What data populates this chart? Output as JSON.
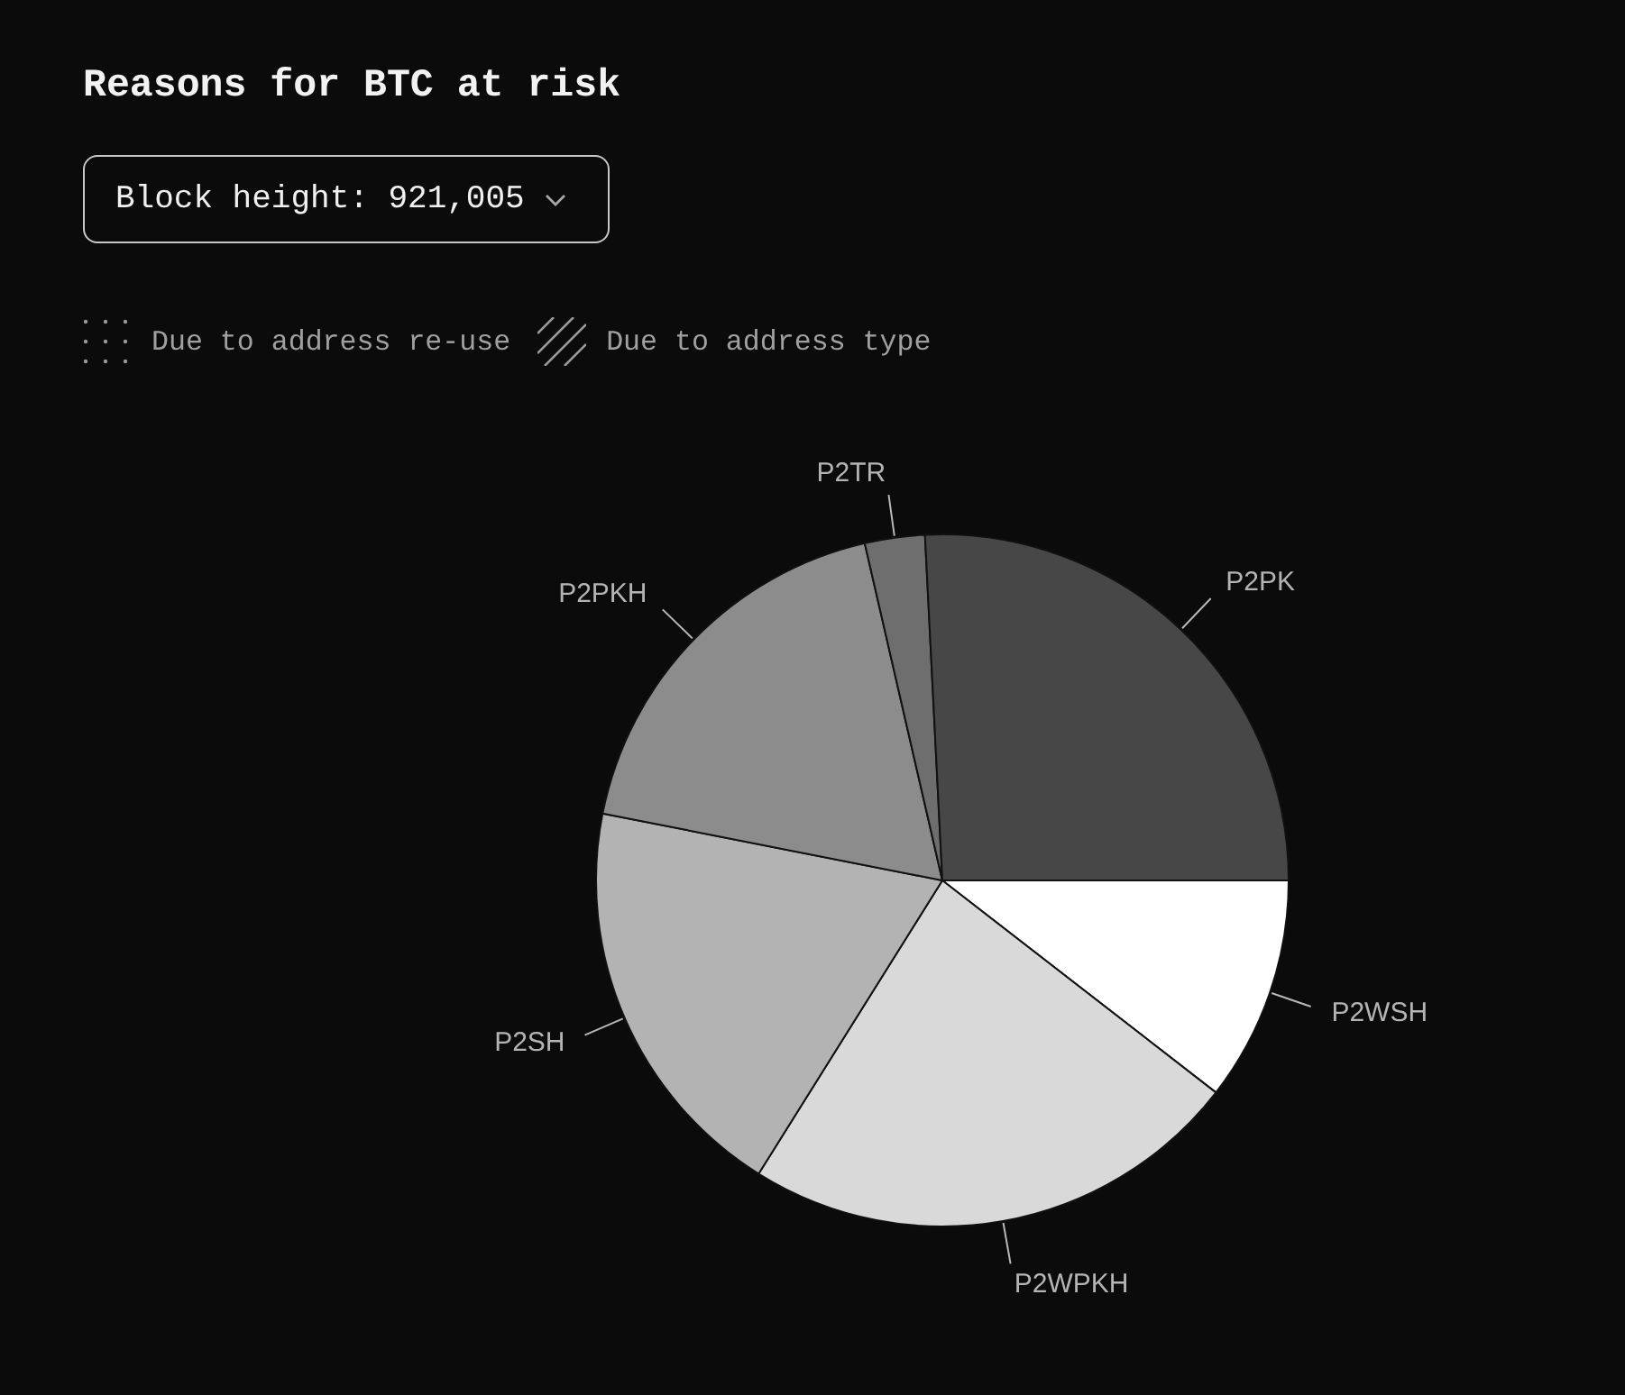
{
  "chart_data": {
    "type": "pie",
    "title": "Reasons for BTC at risk",
    "subtitle": "Block height: 921,005",
    "categories": [
      "P2WSH",
      "P2WPKH",
      "P2SH",
      "P2PKH",
      "P2TR",
      "P2PK"
    ],
    "values": [
      10.5,
      23.4,
      19.2,
      18.3,
      2.8,
      25.8
    ],
    "colors": [
      "#ffffff",
      "#d9d9d9",
      "#b3b3b3",
      "#8c8c8c",
      "#6e6e6e",
      "#474747"
    ],
    "annotations": [
      "Due to address re-use",
      "Due to address type"
    ]
  }
}
